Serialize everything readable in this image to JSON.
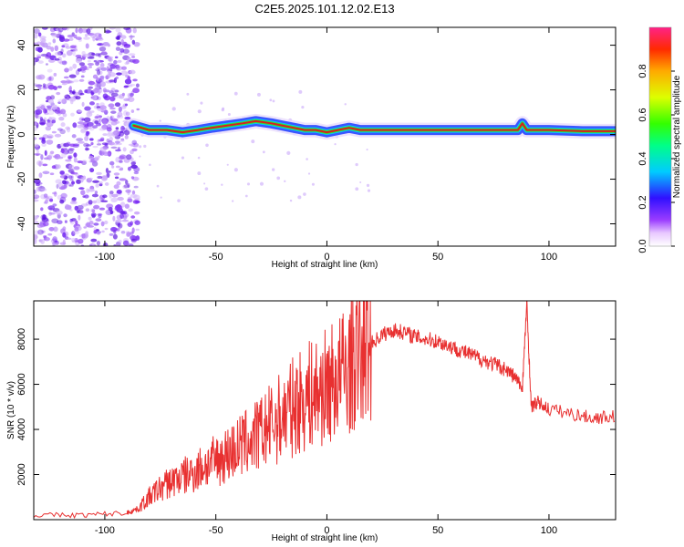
{
  "title": "C2E5.2025.101.12.02.E13",
  "colors": {
    "snr_line": "#e83030",
    "frame": "#000000",
    "scatter": "#7a3cf0",
    "ridge_core": "#d81e1e",
    "ridge_mid": "#33dd33",
    "ridge_edge": "#1a3cff"
  },
  "chart_data": [
    {
      "type": "heatmap",
      "xlabel": "Height of straight line (km)",
      "ylabel": "Frequency (Hz)",
      "xlim": [
        -132,
        130
      ],
      "ylim": [
        -50,
        48
      ],
      "x_ticks": [
        -100,
        -50,
        0,
        50,
        100
      ],
      "y_ticks": [
        -40,
        -20,
        0,
        20,
        40
      ],
      "colorbar": {
        "label": "Normalized spectral amplitude",
        "range": [
          0.0,
          1.0
        ],
        "ticks": [
          "0.0",
          "0.2",
          "0.4",
          "0.6",
          "0.8"
        ],
        "tick_values": [
          0.0,
          0.2,
          0.4,
          0.6,
          0.8
        ]
      },
      "ridge": {
        "x": [
          -87,
          -80,
          -72,
          -65,
          -58,
          -52,
          -45,
          -38,
          -32,
          -25,
          -20,
          -15,
          -10,
          -5,
          0,
          5,
          10,
          15,
          30,
          50,
          70,
          86,
          88,
          90,
          100,
          115,
          130
        ],
        "y": [
          4,
          2,
          2,
          1,
          2,
          3,
          4,
          5,
          6,
          5,
          4,
          3,
          2,
          2,
          1,
          2,
          3,
          2,
          2,
          2,
          2,
          2,
          5,
          2,
          2,
          1.5,
          1.5
        ]
      },
      "noise_region_xlim": [
        -132,
        -85
      ]
    },
    {
      "type": "line",
      "xlabel": "Height of straight line (km)",
      "ylabel": "SNR (10 * v/v)",
      "xlim": [
        -132,
        130
      ],
      "ylim": [
        0,
        9700
      ],
      "x_ticks": [
        -100,
        -50,
        0,
        50,
        100
      ],
      "y_ticks": [
        2000,
        4000,
        6000,
        8000
      ],
      "series": [
        {
          "x": [
            -132,
            -110,
            -90,
            -85,
            -80,
            -75,
            -70,
            -65,
            -60,
            -55,
            -50,
            -45,
            -40,
            -35,
            -30,
            -25,
            -20,
            -15,
            -10,
            -5,
            0,
            5,
            10,
            15,
            20,
            25,
            30,
            35,
            40,
            45,
            50,
            55,
            60,
            65,
            70,
            75,
            80,
            85,
            88,
            90,
            92,
            95,
            100,
            110,
            120,
            130
          ],
          "values": [
            200,
            200,
            300,
            500,
            1000,
            1400,
            1700,
            1900,
            2100,
            2400,
            2600,
            2900,
            3200,
            3500,
            3800,
            4200,
            4600,
            5000,
            5400,
            5600,
            5900,
            6300,
            6800,
            7300,
            7800,
            8200,
            8400,
            8300,
            8100,
            8000,
            7900,
            7700,
            7500,
            7300,
            7100,
            6900,
            6700,
            6300,
            5800,
            9600,
            5000,
            5200,
            4900,
            4700,
            4500,
            4600
          ]
        }
      ]
    }
  ]
}
